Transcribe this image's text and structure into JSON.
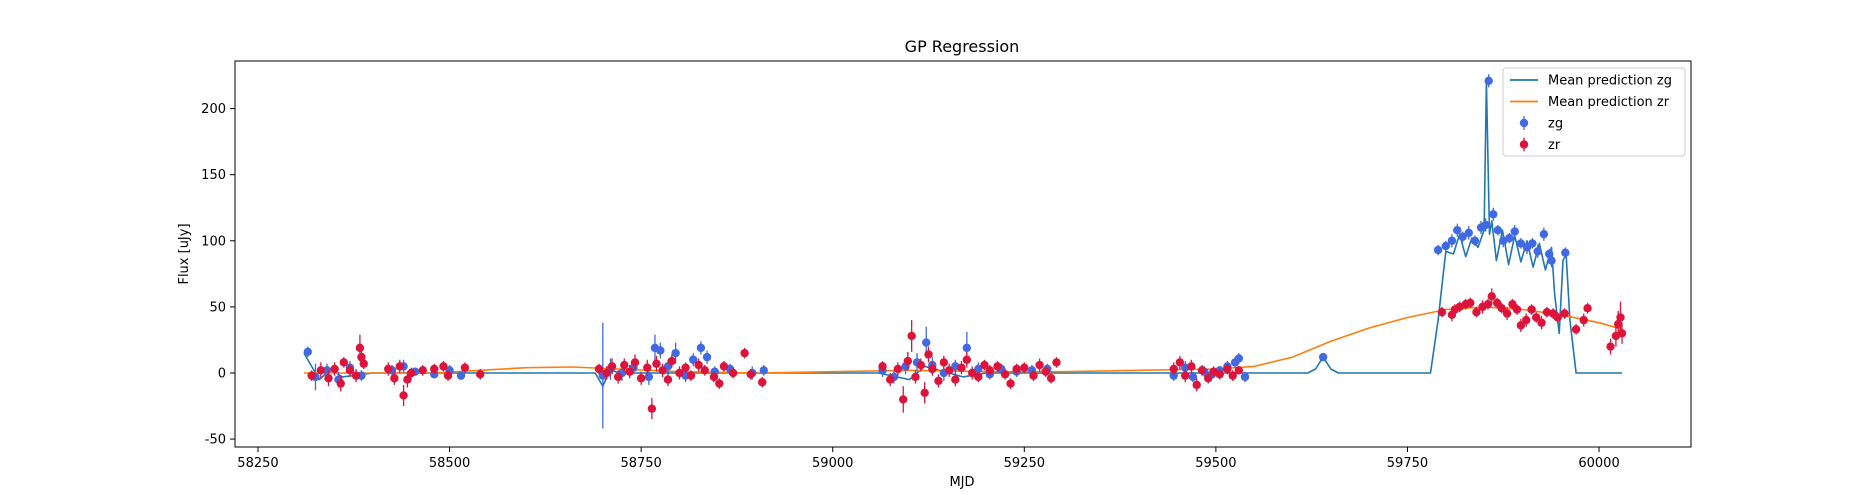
{
  "chart_data": {
    "type": "scatter",
    "title": "GP Regression",
    "xlabel": "MJD",
    "ylabel": "Flux [uJy]",
    "xlim": [
      58220,
      60120
    ],
    "ylim": [
      -56,
      236
    ],
    "xticks": [
      58250,
      58500,
      58750,
      59000,
      59250,
      59500,
      59750,
      60000
    ],
    "yticks": [
      -50,
      0,
      50,
      100,
      150,
      200
    ],
    "grid": false,
    "legend_position": "top-right",
    "legend": [
      {
        "label": "Mean prediction zg",
        "kind": "line",
        "color": "#1f77b4"
      },
      {
        "label": "Mean prediction zr",
        "kind": "line",
        "color": "#ff7f0e"
      },
      {
        "label": "zg",
        "kind": "errorbar",
        "color": "#4169e1"
      },
      {
        "label": "zr",
        "kind": "errorbar",
        "color": "#dc143c"
      }
    ],
    "lines": [
      {
        "name": "Mean prediction zg",
        "color": "#1f77b4",
        "x": [
          58310,
          58330,
          58345,
          58360,
          58400,
          58600,
          58690,
          58700,
          58710,
          58720,
          58900,
          59060,
          59100,
          59120,
          59170,
          59200,
          59300,
          59440,
          59500,
          59545,
          59620,
          59630,
          59640,
          59650,
          59660,
          59780,
          59790,
          59800,
          59810,
          59818,
          59826,
          59834,
          59842,
          59850,
          59853,
          59857,
          59860,
          59866,
          59874,
          59882,
          59890,
          59898,
          59906,
          59914,
          59922,
          59930,
          59938,
          59942,
          59948,
          59953,
          59957,
          59962,
          59970,
          59990,
          60030
        ],
        "y": [
          15,
          -5,
          3,
          -3,
          0,
          0,
          0,
          -10,
          3,
          0,
          0,
          0,
          -5,
          5,
          -3,
          0,
          0,
          0,
          0,
          0,
          0,
          3,
          12,
          3,
          0,
          0,
          40,
          92,
          90,
          105,
          88,
          102,
          95,
          108,
          220,
          105,
          115,
          85,
          108,
          82,
          104,
          84,
          100,
          80,
          98,
          78,
          95,
          60,
          30,
          85,
          90,
          40,
          0,
          0,
          0
        ]
      },
      {
        "name": "Mean prediction zr",
        "color": "#ff7f0e",
        "x": [
          58310,
          58380,
          58480,
          58540,
          58600,
          58660,
          58720,
          58800,
          58900,
          59000,
          59100,
          59200,
          59300,
          59400,
          59500,
          59550,
          59600,
          59650,
          59700,
          59750,
          59800,
          59850,
          59900,
          59950,
          60000,
          60030
        ],
        "y": [
          0,
          0,
          0,
          2,
          4,
          4.5,
          3,
          1,
          0,
          1,
          2,
          1,
          1,
          2,
          3,
          5,
          12,
          24,
          34,
          42,
          48,
          50,
          48,
          44,
          38,
          33
        ]
      }
    ],
    "series": [
      {
        "name": "zg",
        "color": "#4169e1",
        "points": [
          [
            58315,
            16,
            4
          ],
          [
            58325,
            -3,
            10
          ],
          [
            58340,
            2,
            5
          ],
          [
            58355,
            -5,
            6
          ],
          [
            58370,
            4,
            5
          ],
          [
            58385,
            -2,
            4
          ],
          [
            58425,
            2,
            4
          ],
          [
            58440,
            5,
            5
          ],
          [
            58455,
            1,
            3
          ],
          [
            58480,
            -1,
            3
          ],
          [
            58500,
            2,
            4
          ],
          [
            58515,
            -2,
            3
          ],
          [
            58700,
            -2,
            40
          ],
          [
            58710,
            3,
            8
          ],
          [
            58725,
            0,
            6
          ],
          [
            58740,
            4,
            5
          ],
          [
            58760,
            -3,
            6
          ],
          [
            58768,
            19,
            10
          ],
          [
            58775,
            17,
            6
          ],
          [
            58785,
            5,
            5
          ],
          [
            58795,
            15,
            8
          ],
          [
            58808,
            -2,
            5
          ],
          [
            58818,
            10,
            5
          ],
          [
            58828,
            19,
            5
          ],
          [
            58836,
            12,
            5
          ],
          [
            58846,
            1,
            4
          ],
          [
            58866,
            3,
            4
          ],
          [
            58895,
            0,
            5
          ],
          [
            58910,
            2,
            4
          ],
          [
            59065,
            2,
            5
          ],
          [
            59080,
            -3,
            5
          ],
          [
            59095,
            5,
            6
          ],
          [
            59110,
            8,
            7
          ],
          [
            59122,
            23,
            12
          ],
          [
            59130,
            6,
            6
          ],
          [
            59145,
            0,
            6
          ],
          [
            59160,
            5,
            5
          ],
          [
            59175,
            19,
            12
          ],
          [
            59190,
            3,
            5
          ],
          [
            59205,
            -1,
            4
          ],
          [
            59220,
            3,
            4
          ],
          [
            59240,
            1,
            4
          ],
          [
            59260,
            2,
            4
          ],
          [
            59280,
            3,
            4
          ],
          [
            59445,
            -2,
            4
          ],
          [
            59460,
            4,
            5
          ],
          [
            59470,
            -3,
            4
          ],
          [
            59485,
            1,
            4
          ],
          [
            59495,
            -1,
            3
          ],
          [
            59505,
            2,
            3
          ],
          [
            59515,
            5,
            4
          ],
          [
            59525,
            8,
            4
          ],
          [
            59530,
            11,
            4
          ],
          [
            59538,
            -3,
            4
          ],
          [
            59640,
            12,
            3
          ],
          [
            59790,
            93,
            4
          ],
          [
            59800,
            96,
            4
          ],
          [
            59808,
            100,
            5
          ],
          [
            59815,
            108,
            5
          ],
          [
            59822,
            103,
            4
          ],
          [
            59830,
            106,
            5
          ],
          [
            59838,
            100,
            4
          ],
          [
            59846,
            110,
            5
          ],
          [
            59852,
            112,
            5
          ],
          [
            59856,
            221,
            5
          ],
          [
            59862,
            120,
            5
          ],
          [
            59868,
            108,
            4
          ],
          [
            59875,
            100,
            5
          ],
          [
            59883,
            102,
            4
          ],
          [
            59890,
            107,
            5
          ],
          [
            59898,
            98,
            4
          ],
          [
            59906,
            95,
            5
          ],
          [
            59913,
            98,
            4
          ],
          [
            59920,
            92,
            5
          ],
          [
            59928,
            105,
            5
          ],
          [
            59935,
            90,
            4
          ],
          [
            59938,
            85,
            5
          ],
          [
            59956,
            91,
            4
          ]
        ]
      },
      {
        "name": "zr",
        "color": "#dc143c",
        "points": [
          [
            58320,
            -2,
            4
          ],
          [
            58332,
            2,
            6
          ],
          [
            58342,
            -4,
            6
          ],
          [
            58350,
            3,
            5
          ],
          [
            58358,
            -8,
            6
          ],
          [
            58362,
            8,
            4
          ],
          [
            58370,
            2,
            5
          ],
          [
            58378,
            -2,
            5
          ],
          [
            58383,
            19,
            10
          ],
          [
            58385,
            12,
            6
          ],
          [
            58388,
            7,
            4
          ],
          [
            58420,
            3,
            5
          ],
          [
            58428,
            -4,
            5
          ],
          [
            58435,
            5,
            5
          ],
          [
            58440,
            -17,
            8
          ],
          [
            58445,
            -5,
            6
          ],
          [
            58450,
            0,
            4
          ],
          [
            58465,
            2,
            4
          ],
          [
            58480,
            3,
            4
          ],
          [
            58492,
            5,
            4
          ],
          [
            58498,
            -2,
            4
          ],
          [
            58520,
            4,
            4
          ],
          [
            58540,
            -1,
            4
          ],
          [
            58695,
            3,
            4
          ],
          [
            58705,
            0,
            5
          ],
          [
            58712,
            5,
            6
          ],
          [
            58720,
            -3,
            5
          ],
          [
            58728,
            6,
            5
          ],
          [
            58735,
            1,
            5
          ],
          [
            58742,
            8,
            6
          ],
          [
            58750,
            -4,
            5
          ],
          [
            58758,
            4,
            6
          ],
          [
            58764,
            -27,
            8
          ],
          [
            58770,
            7,
            6
          ],
          [
            58778,
            2,
            5
          ],
          [
            58785,
            -5,
            5
          ],
          [
            58790,
            9,
            5
          ],
          [
            58800,
            0,
            5
          ],
          [
            58808,
            4,
            4
          ],
          [
            58815,
            -2,
            4
          ],
          [
            58825,
            6,
            5
          ],
          [
            58833,
            2,
            4
          ],
          [
            58845,
            -3,
            4
          ],
          [
            58852,
            -8,
            4
          ],
          [
            58858,
            5,
            4
          ],
          [
            58870,
            0,
            4
          ],
          [
            58885,
            15,
            4
          ],
          [
            58893,
            -1,
            4
          ],
          [
            58908,
            -7,
            4
          ],
          [
            59065,
            5,
            4
          ],
          [
            59075,
            -5,
            5
          ],
          [
            59085,
            3,
            5
          ],
          [
            59092,
            -20,
            10
          ],
          [
            59098,
            9,
            7
          ],
          [
            59103,
            28,
            12
          ],
          [
            59108,
            -3,
            5
          ],
          [
            59115,
            6,
            5
          ],
          [
            59120,
            -15,
            8
          ],
          [
            59125,
            14,
            6
          ],
          [
            59130,
            3,
            5
          ],
          [
            59138,
            -6,
            5
          ],
          [
            59145,
            8,
            5
          ],
          [
            59152,
            2,
            5
          ],
          [
            59160,
            -5,
            5
          ],
          [
            59168,
            4,
            5
          ],
          [
            59175,
            10,
            6
          ],
          [
            59182,
            0,
            5
          ],
          [
            59190,
            -3,
            4
          ],
          [
            59198,
            6,
            4
          ],
          [
            59205,
            2,
            4
          ],
          [
            59215,
            5,
            4
          ],
          [
            59225,
            -1,
            4
          ],
          [
            59232,
            -8,
            4
          ],
          [
            59240,
            3,
            4
          ],
          [
            59250,
            4,
            4
          ],
          [
            59262,
            -2,
            4
          ],
          [
            59270,
            6,
            5
          ],
          [
            59278,
            1,
            4
          ],
          [
            59285,
            -4,
            4
          ],
          [
            59292,
            8,
            4
          ],
          [
            59445,
            3,
            5
          ],
          [
            59453,
            8,
            5
          ],
          [
            59460,
            -2,
            5
          ],
          [
            59468,
            5,
            5
          ],
          [
            59475,
            -9,
            5
          ],
          [
            59482,
            2,
            4
          ],
          [
            59490,
            -4,
            4
          ],
          [
            59497,
            1,
            4
          ],
          [
            59505,
            -1,
            4
          ],
          [
            59515,
            3,
            4
          ],
          [
            59522,
            -2,
            4
          ],
          [
            59530,
            2,
            3
          ],
          [
            59795,
            46,
            4
          ],
          [
            59808,
            44,
            5
          ],
          [
            59812,
            48,
            4
          ],
          [
            59818,
            50,
            4
          ],
          [
            59826,
            52,
            4
          ],
          [
            59832,
            53,
            4
          ],
          [
            59840,
            46,
            4
          ],
          [
            59848,
            50,
            5
          ],
          [
            59855,
            52,
            4
          ],
          [
            59860,
            58,
            6
          ],
          [
            59867,
            53,
            4
          ],
          [
            59873,
            49,
            4
          ],
          [
            59880,
            45,
            5
          ],
          [
            59887,
            52,
            4
          ],
          [
            59893,
            48,
            4
          ],
          [
            59898,
            36,
            5
          ],
          [
            59905,
            40,
            5
          ],
          [
            59912,
            48,
            4
          ],
          [
            59918,
            42,
            4
          ],
          [
            59925,
            38,
            5
          ],
          [
            59932,
            46,
            4
          ],
          [
            59940,
            45,
            4
          ],
          [
            59946,
            42,
            4
          ],
          [
            59955,
            45,
            4
          ],
          [
            59970,
            33,
            4
          ],
          [
            59980,
            40,
            5
          ],
          [
            59985,
            49,
            4
          ],
          [
            60015,
            20,
            6
          ],
          [
            60022,
            28,
            8
          ],
          [
            60025,
            37,
            10
          ],
          [
            60028,
            42,
            12
          ],
          [
            60030,
            30,
            8
          ]
        ]
      }
    ]
  }
}
